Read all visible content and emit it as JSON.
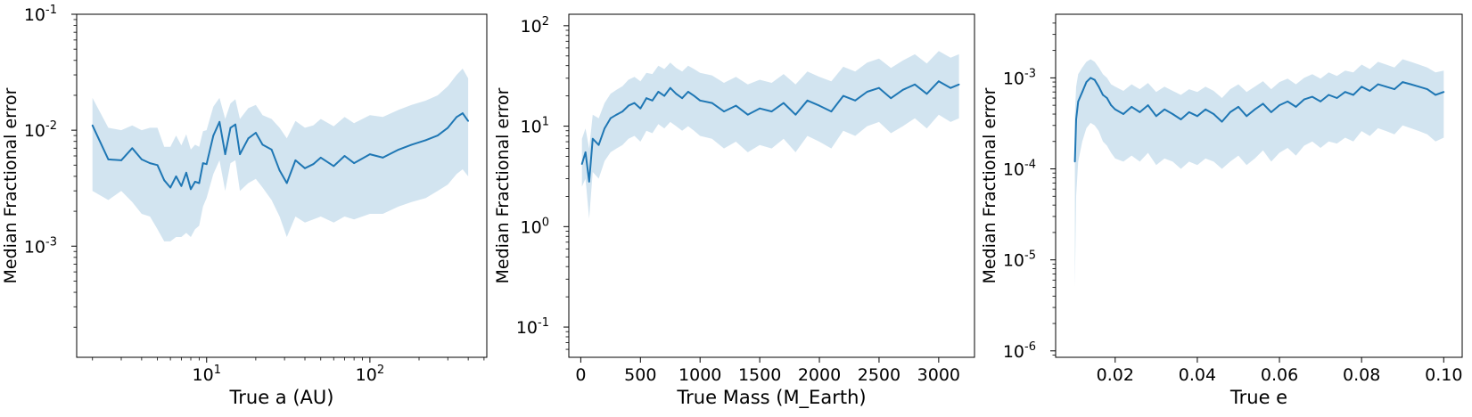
{
  "chart_data": [
    {
      "type": "line",
      "xlabel": "True a  (AU)",
      "ylabel": "Median Fractional error",
      "xscale": "log",
      "yscale": "log",
      "xlim": [
        1.6,
        520
      ],
      "ylim": [
        0.00011,
        0.1
      ],
      "x_ticks": [
        {
          "base": "10",
          "exp": "1",
          "value": 10
        },
        {
          "base": "10",
          "exp": "2",
          "value": 100
        }
      ],
      "y_ticks": [
        {
          "base": "10",
          "exp": "-3",
          "value": 0.001
        },
        {
          "base": "10",
          "exp": "-2",
          "value": 0.01
        },
        {
          "base": "10",
          "exp": "-1",
          "value": 0.1
        }
      ],
      "band": true,
      "color": "#1f77b4",
      "band_color": "#1f77b4",
      "series": [
        {
          "x": [
            2,
            2.5,
            3,
            3.5,
            4,
            4.5,
            5,
            5.5,
            6,
            6.5,
            7,
            7.5,
            8,
            8.5,
            9,
            9.5,
            10,
            11,
            12,
            13,
            14,
            15,
            16,
            18,
            20,
            22,
            25,
            28,
            31,
            35,
            40,
            45,
            50,
            60,
            70,
            80,
            100,
            120,
            150,
            180,
            220,
            260,
            300,
            340,
            370,
            400
          ],
          "values": [
            0.011,
            0.0056,
            0.0055,
            0.007,
            0.0056,
            0.0052,
            0.005,
            0.0037,
            0.0032,
            0.004,
            0.0033,
            0.0043,
            0.0031,
            0.0036,
            0.0035,
            0.0052,
            0.0051,
            0.009,
            0.0118,
            0.0062,
            0.0105,
            0.0112,
            0.0062,
            0.0085,
            0.0095,
            0.0075,
            0.0068,
            0.0045,
            0.0035,
            0.0055,
            0.0047,
            0.0051,
            0.0058,
            0.0049,
            0.006,
            0.0052,
            0.0062,
            0.0058,
            0.0068,
            0.0075,
            0.0082,
            0.009,
            0.0105,
            0.013,
            0.014,
            0.012
          ],
          "lower": [
            0.003,
            0.0025,
            0.003,
            0.0024,
            0.0019,
            0.0018,
            0.0014,
            0.0011,
            0.0011,
            0.0012,
            0.0012,
            0.0013,
            0.0012,
            0.0014,
            0.0015,
            0.0022,
            0.0026,
            0.0042,
            0.0055,
            0.003,
            0.0052,
            0.0055,
            0.003,
            0.0035,
            0.0038,
            0.0032,
            0.0025,
            0.0018,
            0.0012,
            0.0018,
            0.0016,
            0.0017,
            0.0018,
            0.0016,
            0.0018,
            0.0017,
            0.0019,
            0.0019,
            0.0022,
            0.0024,
            0.0026,
            0.003,
            0.0034,
            0.0042,
            0.0046,
            0.004
          ],
          "upper": [
            0.019,
            0.0105,
            0.01,
            0.011,
            0.01,
            0.0105,
            0.0105,
            0.0072,
            0.0072,
            0.009,
            0.0074,
            0.0092,
            0.0068,
            0.0075,
            0.0072,
            0.0098,
            0.01,
            0.016,
            0.019,
            0.0125,
            0.017,
            0.0185,
            0.0125,
            0.0155,
            0.0165,
            0.0135,
            0.0125,
            0.0105,
            0.0085,
            0.012,
            0.0105,
            0.011,
            0.0125,
            0.0108,
            0.013,
            0.0115,
            0.0135,
            0.013,
            0.015,
            0.0165,
            0.018,
            0.02,
            0.024,
            0.03,
            0.034,
            0.028
          ]
        }
      ]
    },
    {
      "type": "line",
      "xlabel": "True Mass  (M_Earth)",
      "ylabel": "Median Fractional error",
      "xscale": "linear",
      "yscale": "log",
      "xlim": [
        -100,
        3300
      ],
      "ylim": [
        0.05,
        130
      ],
      "x_ticks": [
        {
          "label": "0",
          "value": 0
        },
        {
          "label": "500",
          "value": 500
        },
        {
          "label": "1000",
          "value": 1000
        },
        {
          "label": "1500",
          "value": 1500
        },
        {
          "label": "2000",
          "value": 2000
        },
        {
          "label": "2500",
          "value": 2500
        },
        {
          "label": "3000",
          "value": 3000
        }
      ],
      "y_ticks": [
        {
          "base": "10",
          "exp": "-1",
          "value": 0.1
        },
        {
          "base": "10",
          "exp": "0",
          "value": 1
        },
        {
          "base": "10",
          "exp": "1",
          "value": 10
        },
        {
          "base": "10",
          "exp": "2",
          "value": 100
        }
      ],
      "band": true,
      "color": "#1f77b4",
      "band_color": "#1f77b4",
      "series": [
        {
          "x": [
            10,
            40,
            70,
            100,
            150,
            200,
            250,
            300,
            350,
            400,
            450,
            500,
            550,
            600,
            650,
            700,
            750,
            800,
            850,
            900,
            950,
            1000,
            1100,
            1200,
            1300,
            1400,
            1500,
            1600,
            1700,
            1800,
            1900,
            2000,
            2100,
            2200,
            2300,
            2400,
            2500,
            2600,
            2700,
            2800,
            2900,
            3000,
            3100,
            3170
          ],
          "values": [
            4.2,
            5.5,
            2.8,
            7.5,
            6.5,
            9.5,
            12,
            13,
            14,
            16,
            17,
            15,
            19,
            18,
            22,
            20,
            24,
            21,
            19,
            22,
            20,
            18,
            17,
            14,
            16,
            13,
            15,
            14,
            17,
            13,
            18,
            16,
            14,
            20,
            18,
            22,
            24,
            19,
            23,
            26,
            21,
            28,
            24,
            26
          ],
          "lower": [
            2.5,
            3.0,
            1.2,
            3.5,
            3.0,
            4.5,
            5.5,
            6.0,
            6.5,
            7.5,
            8.0,
            7.0,
            9.0,
            8.5,
            10.5,
            9.5,
            11,
            10,
            9,
            10,
            9,
            8,
            7.5,
            6,
            7,
            5.5,
            6.5,
            6,
            7.5,
            5.5,
            8,
            7,
            6,
            9,
            8,
            10,
            11,
            8.5,
            10,
            12,
            9.5,
            13,
            11,
            12
          ],
          "upper": [
            7.5,
            9.5,
            6.0,
            13,
            12,
            17,
            21,
            23,
            25,
            29,
            31,
            28,
            34,
            33,
            40,
            37,
            43,
            38,
            35,
            40,
            37,
            34,
            32,
            27,
            31,
            26,
            29,
            27,
            33,
            26,
            35,
            31,
            28,
            39,
            35,
            43,
            47,
            38,
            45,
            52,
            42,
            56,
            48,
            52
          ]
        }
      ]
    },
    {
      "type": "line",
      "xlabel": "True e",
      "ylabel": "Median Fractional error",
      "xscale": "linear",
      "yscale": "log",
      "xlim": [
        0.0055,
        0.1045
      ],
      "ylim": [
        8.5e-07,
        0.005
      ],
      "x_ticks": [
        {
          "label": "0.02",
          "value": 0.02
        },
        {
          "label": "0.04",
          "value": 0.04
        },
        {
          "label": "0.06",
          "value": 0.06
        },
        {
          "label": "0.08",
          "value": 0.08
        },
        {
          "label": "0.10",
          "value": 0.1
        }
      ],
      "y_ticks": [
        {
          "base": "10",
          "exp": "-6",
          "value": 1e-06
        },
        {
          "base": "10",
          "exp": "-5",
          "value": 1e-05
        },
        {
          "base": "10",
          "exp": "-4",
          "value": 0.0001
        },
        {
          "base": "10",
          "exp": "-3",
          "value": 0.001
        }
      ],
      "band": true,
      "color": "#1f77b4",
      "band_color": "#1f77b4",
      "series": [
        {
          "x": [
            0.0102,
            0.0105,
            0.011,
            0.012,
            0.013,
            0.014,
            0.015,
            0.016,
            0.017,
            0.018,
            0.019,
            0.02,
            0.022,
            0.024,
            0.026,
            0.028,
            0.03,
            0.032,
            0.034,
            0.036,
            0.038,
            0.04,
            0.042,
            0.044,
            0.046,
            0.048,
            0.05,
            0.052,
            0.054,
            0.056,
            0.058,
            0.06,
            0.062,
            0.064,
            0.066,
            0.068,
            0.07,
            0.072,
            0.074,
            0.076,
            0.078,
            0.08,
            0.082,
            0.084,
            0.086,
            0.088,
            0.09,
            0.092,
            0.094,
            0.096,
            0.098,
            0.1
          ],
          "values": [
            0.00012,
            0.00035,
            0.00055,
            0.0007,
            0.0009,
            0.001,
            0.00095,
            0.0008,
            0.00065,
            0.0006,
            0.0005,
            0.00045,
            0.0004,
            0.00048,
            0.00042,
            0.0005,
            0.00038,
            0.00045,
            0.0004,
            0.00035,
            0.00042,
            0.00038,
            0.00045,
            0.0004,
            0.00033,
            0.00042,
            0.00048,
            0.00038,
            0.00045,
            0.00052,
            0.00042,
            0.0005,
            0.00055,
            0.00048,
            0.00058,
            0.00062,
            0.00055,
            0.00065,
            0.0006,
            0.0007,
            0.00065,
            0.0008,
            0.00072,
            0.00085,
            0.0008,
            0.00075,
            0.0009,
            0.00085,
            0.0008,
            0.00075,
            0.00065,
            0.0007
          ],
          "lower": [
            5e-06,
            5e-05,
            0.00012,
            0.0002,
            0.00028,
            0.00032,
            0.0003,
            0.00026,
            0.0002,
            0.00018,
            0.00015,
            0.00013,
            0.00012,
            0.00014,
            0.00012,
            0.00015,
            0.00011,
            0.00013,
            0.00012,
            0.0001,
            0.00012,
            0.00011,
            0.00013,
            0.00012,
            0.0001,
            0.00012,
            0.00014,
            0.00011,
            0.00013,
            0.00016,
            0.00012,
            0.00015,
            0.00017,
            0.00014,
            0.00018,
            0.0002,
            0.00017,
            0.0002,
            0.00019,
            0.00022,
            0.0002,
            0.00026,
            0.00023,
            0.00028,
            0.00026,
            0.00024,
            0.0003,
            0.00028,
            0.00026,
            0.00024,
            0.0002,
            0.00022
          ],
          "upper": [
            0.0004,
            0.0008,
            0.0011,
            0.0013,
            0.0015,
            0.0016,
            0.0015,
            0.0013,
            0.0011,
            0.001,
            0.00085,
            0.0008,
            0.00072,
            0.00085,
            0.00075,
            0.00088,
            0.0007,
            0.0008,
            0.00072,
            0.00065,
            0.00075,
            0.0007,
            0.0008,
            0.00072,
            0.0006,
            0.00075,
            0.00085,
            0.0007,
            0.0008,
            0.00092,
            0.00075,
            0.0009,
            0.00098,
            0.00085,
            0.001,
            0.0011,
            0.00098,
            0.00115,
            0.00105,
            0.0012,
            0.00115,
            0.0014,
            0.00125,
            0.0015,
            0.0014,
            0.0013,
            0.0016,
            0.0015,
            0.0014,
            0.0013,
            0.00115,
            0.0012
          ]
        }
      ]
    }
  ]
}
